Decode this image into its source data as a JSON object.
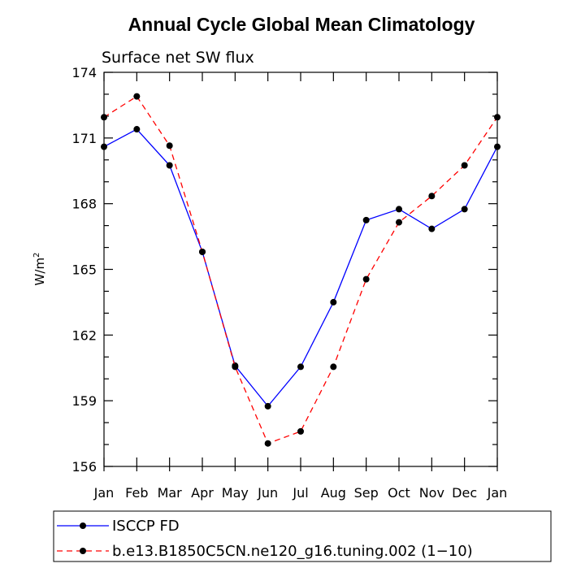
{
  "chart_data": {
    "type": "line",
    "title": "Annual Cycle Global Mean Climatology",
    "subtitle": "Surface net SW flux",
    "ylabel_base": "W/m",
    "ylabel_sup": "2",
    "xlabel": "",
    "categories": [
      "Jan",
      "Feb",
      "Mar",
      "Apr",
      "May",
      "Jun",
      "Jul",
      "Aug",
      "Sep",
      "Oct",
      "Nov",
      "Dec",
      "Jan"
    ],
    "ylim": [
      156,
      174
    ],
    "yticks": [
      156,
      159,
      162,
      165,
      168,
      171,
      174
    ],
    "y_minor_step": 1,
    "grid": false,
    "legend_position": "bottom",
    "series": [
      {
        "name": "ISCCP FD",
        "color": "#0000ff",
        "dash": "solid",
        "values": [
          170.6,
          171.4,
          169.75,
          165.8,
          160.6,
          158.75,
          160.55,
          163.5,
          167.25,
          167.75,
          166.85,
          167.75,
          170.6
        ]
      },
      {
        "name": "b.e13.B1850C5CN.ne120_g16.tuning.002 (1−10)",
        "color": "#ff0000",
        "dash": "dashed",
        "values": [
          171.95,
          172.9,
          170.65,
          165.8,
          160.55,
          157.05,
          157.6,
          160.55,
          164.55,
          167.15,
          168.35,
          169.75,
          171.95
        ]
      }
    ]
  }
}
